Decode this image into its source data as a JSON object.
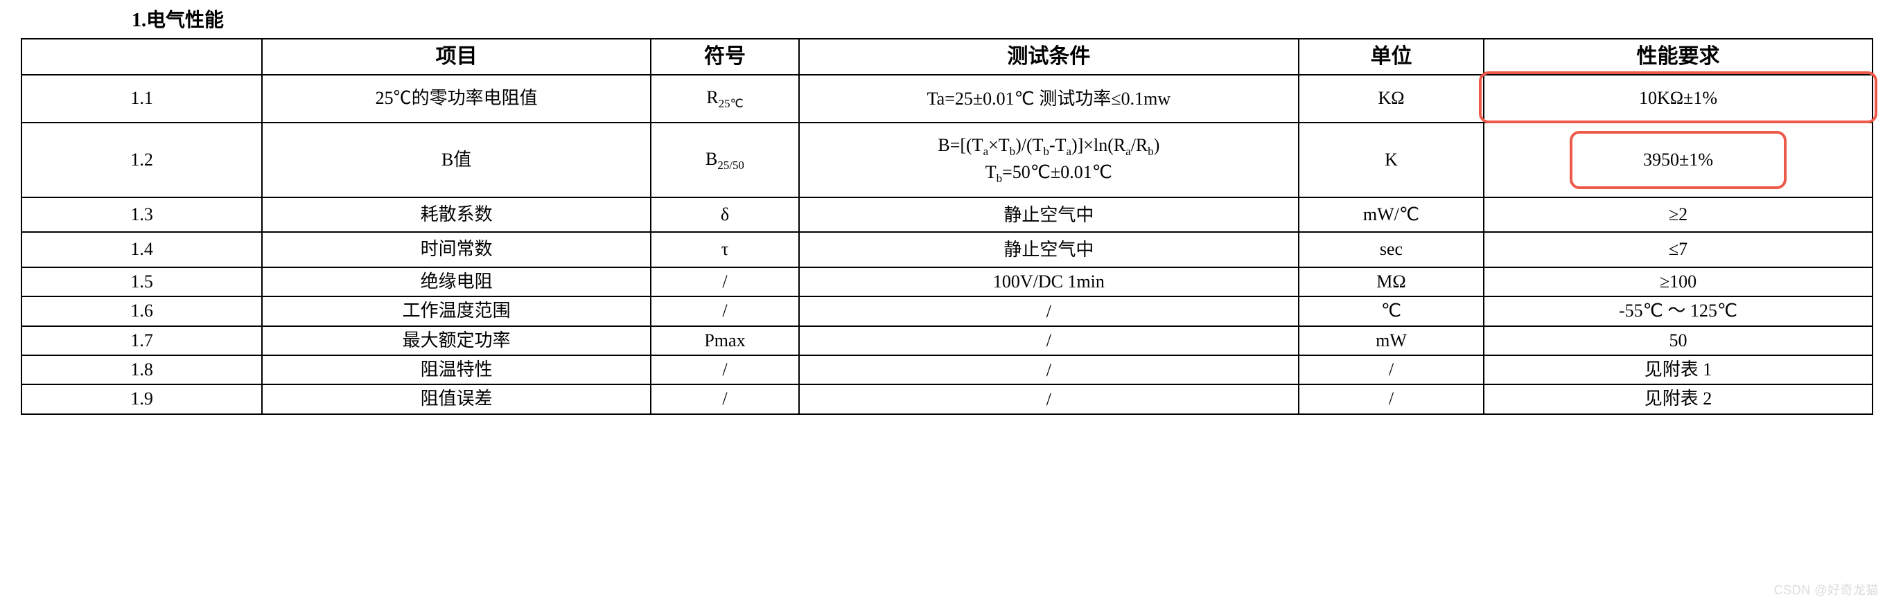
{
  "section_title": "1.电气性能",
  "headers": {
    "c0": "",
    "c1": "项目",
    "c2": "符号",
    "c3": "测试条件",
    "c4": "单位",
    "c5": "性能要求"
  },
  "rows": [
    {
      "no": "1.1",
      "item": "25℃的零功率电阻值",
      "symbol_html": "R<sub>25℃</sub>",
      "condition_html": "Ta=25±0.01℃ 测试功率≤0.1mw",
      "unit": "KΩ",
      "req": "10KΩ±1%",
      "highlight": "top",
      "size": "tall"
    },
    {
      "no": "1.2",
      "item": "B值",
      "symbol_html": "B<sub>25/50</sub>",
      "condition_html": "B=[(T<sub>a</sub>×T<sub>b</sub>)/(T<sub>b</sub>-T<sub>a</sub>)]×ln(R<sub>a</sub>/R<sub>b</sub>)<br>T<sub>b</sub>=50℃±0.01℃",
      "unit": "K",
      "req": "3950±1%",
      "highlight": "inner",
      "size": "tall"
    },
    {
      "no": "1.3",
      "item": "耗散系数",
      "symbol_html": "δ",
      "condition_html": "静止空气中",
      "unit": "mW/℃",
      "req": "≥2",
      "size": "med"
    },
    {
      "no": "1.4",
      "item": "时间常数",
      "symbol_html": "τ",
      "condition_html": "静止空气中",
      "unit": "sec",
      "req": "≤7",
      "size": "med"
    },
    {
      "no": "1.5",
      "item": "绝缘电阻",
      "symbol_html": "/",
      "condition_html": "100V/DC 1min",
      "unit": "MΩ",
      "req": "≥100",
      "size": "slim"
    },
    {
      "no": "1.6",
      "item": "工作温度范围",
      "symbol_html": "/",
      "condition_html": "/",
      "unit": "℃",
      "req": "-55℃ ～ 125℃",
      "size": "slim"
    },
    {
      "no": "1.7",
      "item": "最大额定功率",
      "symbol_html": "Pmax",
      "condition_html": "/",
      "unit": "mW",
      "req": "50",
      "size": "slim"
    },
    {
      "no": "1.8",
      "item": "阻温特性",
      "symbol_html": "/",
      "condition_html": "/",
      "unit": "/",
      "req": "见附表 1",
      "size": "slim"
    },
    {
      "no": "1.9",
      "item": "阻值误差",
      "symbol_html": "/",
      "condition_html": "/",
      "unit": "/",
      "req": "见附表 2",
      "size": "slim"
    }
  ],
  "highlight_color": "#ee5a4a",
  "watermark": "CSDN @好奇龙猫"
}
